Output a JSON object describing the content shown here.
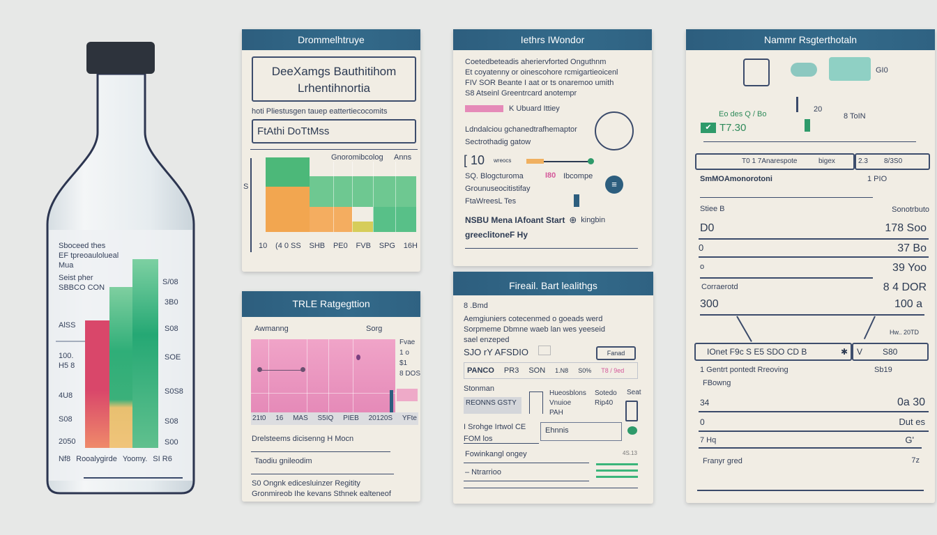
{
  "colors": {
    "header": "#2e5f80",
    "green": "#4cb879",
    "orange": "#f2a650",
    "pink": "#e98bb6",
    "red": "#d9476a",
    "navy": "#2c3a52"
  },
  "bottle": {
    "label_lines": [
      "Sboceed thes",
      "EF tpreoaulolueal",
      "Mua",
      "Seist pher",
      "SBBCO CON"
    ],
    "left_ticks": [
      "AlSS",
      "100.",
      "H5 8",
      "4U8",
      "S08",
      "2050"
    ],
    "right_ticks": [
      "S/08",
      "3B0",
      "S08",
      "SOE",
      "S0S8",
      "S08",
      "S00"
    ],
    "footer": [
      "Nf8",
      "Rooalygirde",
      "Yoomy.",
      "SI R6"
    ]
  },
  "card1": {
    "title": "Drommelhtruye",
    "box_line1": "DeeXamgs Bauthitihom",
    "box_line2": "Lrhentihnortia",
    "subtitle": "hoti Pliestusgen tauep eattertiecocomits",
    "field_value": "FtAthi DoTtMss",
    "chart_legend": "Gnoromibcolog",
    "chart_legend2": "Anns",
    "y_label": "S",
    "x_ticks": [
      "10",
      "(4 0 SS",
      "SHB",
      "PE0",
      "FVB",
      "SPG",
      "16H"
    ]
  },
  "card2": {
    "title": "Iethrs IWondor",
    "lines": [
      "Coetedbeteadis aheriervforted Onguthnm",
      "Et coyatenny or oinescohore rcmigartieoicenl",
      "FIV SOR Beante I aat or ts onaremoo umith",
      "S8 Atseinl Greentrcard anotempr"
    ],
    "chip_text": "K Ubuard Ittiey",
    "line5": "Ldndalciou gchanedtrafhemaptor",
    "line6": "Sectrothadig gatow",
    "num": "[ 10",
    "small": "wreocs",
    "line8a": "SQ. Blogcturoma",
    "line8b": "I80",
    "line8c": "Ibcompe",
    "line9": "Grounuseocitistifay",
    "line10": "FtaWreesL Tes",
    "bold1": "NSBU Mena IAfoant Start",
    "bold1b": "kingbin",
    "bold2": "greeclitoneF Hy"
  },
  "card3": {
    "title": "TRLE Ratgegttion",
    "label_left": "Awmanng",
    "label_right": "Sorg",
    "side_labels": [
      "Fvae",
      "1 o",
      "$1",
      "8 DOS"
    ],
    "x_ticks": [
      "21t0",
      "16",
      "MAS",
      "S5IQ",
      "PIEB",
      "20120S",
      "YFte"
    ],
    "line1": "Drelsteems dicisenng H Mocn",
    "line2": "Taodiu gnileodim",
    "line3": "S0 Ongnk edicesluinzer Regitity",
    "line4": "Gronmireob Ihe kevans Sthnek ealteneof"
  },
  "card4": {
    "title": "Fireail. Bart lealithgs",
    "line1": "8 .Bmd",
    "lines": [
      "Aemgiuniers cotecenmed o goeads werd",
      "Sorpmeme Dbmne waeb lan wes yeeseid",
      "sael enzeped"
    ],
    "code": "SJO rY AFSDIO",
    "button": "Fanad",
    "row": [
      "PANCO",
      "PR3",
      "SON",
      "1.N8",
      "S0%",
      "T8 / 9ed"
    ],
    "stonman": "Stonman",
    "tag": "REONNS GSTY",
    "col1": [
      "Hueosblons",
      "Vnuioe",
      "PAH"
    ],
    "col2": [
      "Sotedo",
      "Rip40"
    ],
    "col3": "Seat",
    "line_a": "I Srohge Irtwol CE",
    "line_b": "FOM los",
    "input_value": "Ehnnis",
    "line_c": "Fowinkangl ongey",
    "line_d": "– Ntrarrioo",
    "small_num": "4S.13"
  },
  "card5": {
    "title": "Nammr Rsgterthotaln",
    "icon_label1": "GI0",
    "icon_label2": "8 ToIN",
    "icon_label3": "20",
    "green_label": "Eo des Q / Bo",
    "green_value": "T7.30",
    "row_box": [
      "T0 1 7Anarespote",
      "bigex",
      "2.3",
      "8/3S0"
    ],
    "heading": "SmMOAmonorotoni",
    "heading_right": "1 PIO",
    "col_left": "Stiee B",
    "col_right": "Sonotrbuto",
    "rows1": [
      [
        "D0",
        "178 Soo"
      ],
      [
        "0",
        "37 Bo"
      ],
      [
        "o",
        "39 Yoo"
      ],
      [
        "Corraerotd",
        "8 4 DOR"
      ],
      [
        "300",
        "100 a"
      ]
    ],
    "mid_label": "Hw.. 20TD",
    "row_box2": [
      "IOnet F9c S E5 SDO CD B",
      "✱",
      "V",
      "S80"
    ],
    "sub1": "1 Gentrt pontedt Rreoving",
    "sub1_right": "Sb19",
    "sub2": "FBowng",
    "rows2": [
      [
        "34",
        "0a 30"
      ],
      [
        "0",
        "Dut es"
      ],
      [
        "7 Hq",
        "G'"
      ],
      [
        "Franyr gred",
        "7z"
      ]
    ]
  }
}
